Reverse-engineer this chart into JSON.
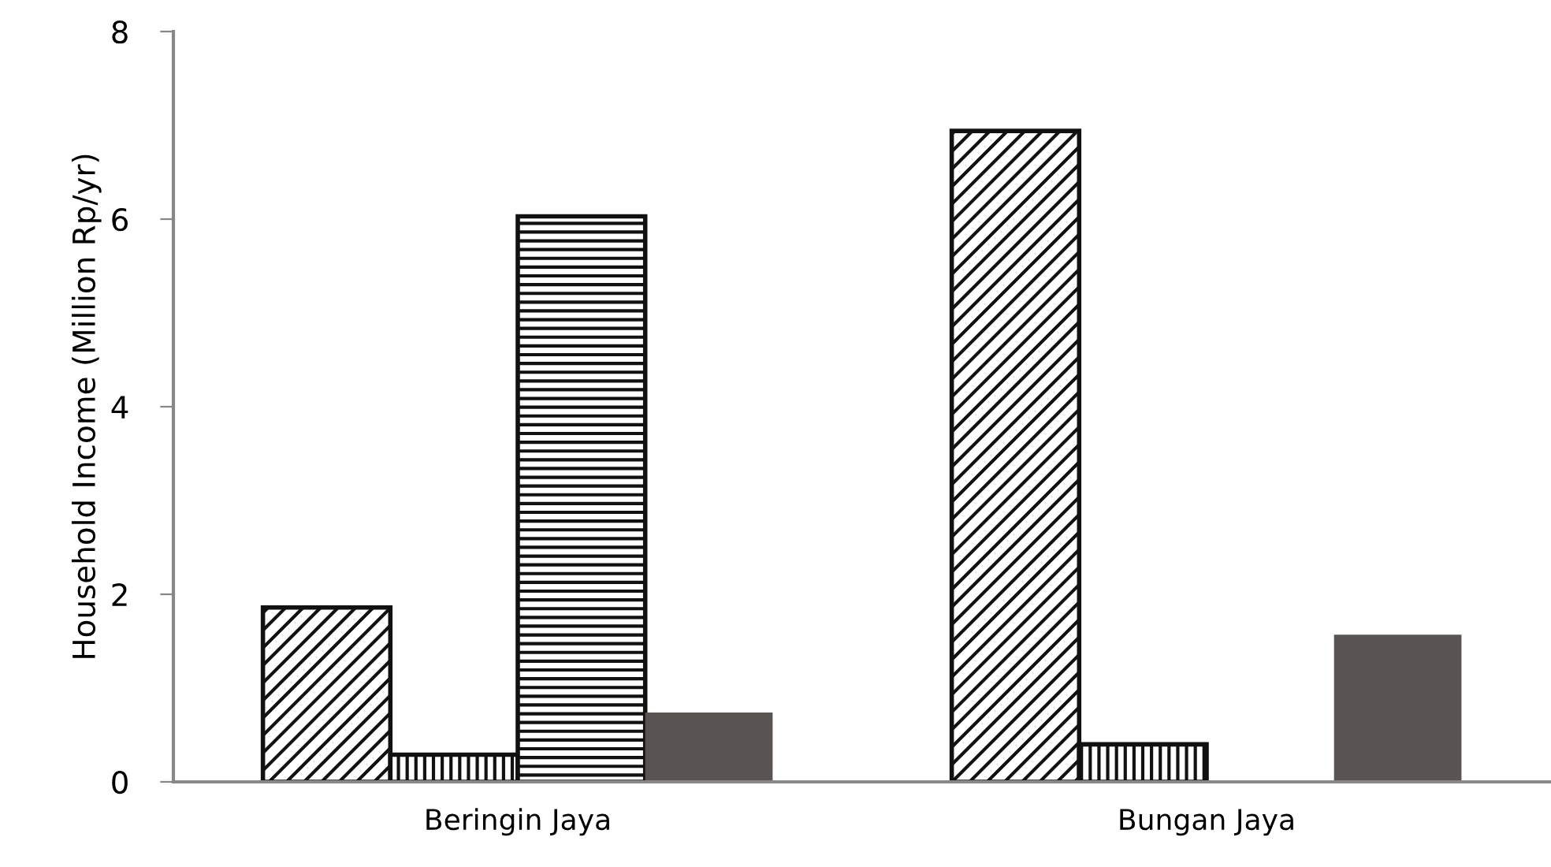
{
  "chart_data": {
    "type": "bar",
    "ylabel": "Household Income (Million Rp/yr)",
    "categories": [
      "Beringin Jaya",
      "Bungan Jaya"
    ],
    "series": [
      {
        "color": "#111111",
        "values": [
          1.86,
          6.94
        ]
      },
      {
        "color": "#111111",
        "values": [
          0.29,
          0.4
        ]
      },
      {
        "color": "#111111",
        "values": [
          6.03,
          null
        ]
      },
      {
        "color": "#595451",
        "values": [
          0.74,
          1.57
        ]
      }
    ],
    "ylim": [
      0,
      8
    ],
    "yticks": [
      0,
      2,
      4,
      6,
      8
    ],
    "grid": false,
    "legend": false
  }
}
